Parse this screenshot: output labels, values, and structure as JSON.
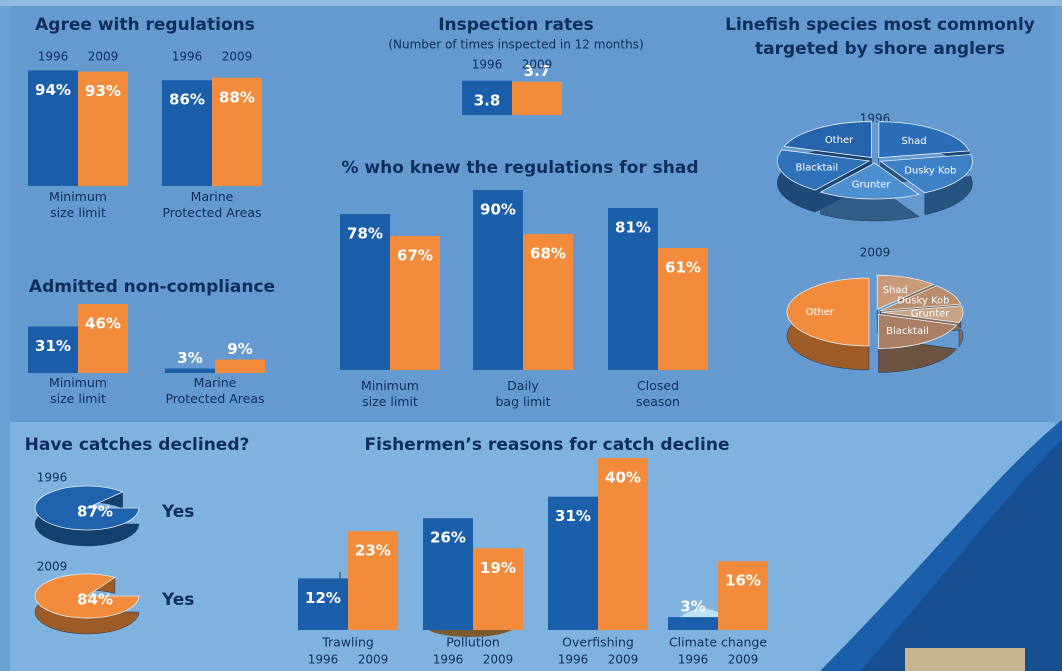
{
  "chart_data": [
    {
      "type": "bar",
      "title": "Agree with regulations",
      "categories": [
        "Minimum size limit",
        "Marine Protected Areas"
      ],
      "series": [
        {
          "name": "1996",
          "color": "#1b5ea9",
          "values": [
            94,
            86
          ],
          "value_labels": [
            "94%",
            "86%"
          ]
        },
        {
          "name": "2009",
          "color": "#f28c3c",
          "values": [
            93,
            88
          ],
          "value_labels": [
            "93%",
            "88%"
          ]
        }
      ]
    },
    {
      "type": "bar",
      "title": "Inspection rates",
      "subtitle": "(Number of times inspected in 12 months)",
      "series": [
        {
          "name": "1996",
          "color": "#1b5ea9",
          "values": [
            3.8
          ]
        },
        {
          "name": "2009",
          "color": "#f28c3c",
          "values": [
            3.7
          ]
        }
      ]
    },
    {
      "type": "pie",
      "title": "Linefish species most commonly targeted by shore anglers",
      "categories": [
        "Shad",
        "Dusky Kob",
        "Grunter",
        "Blacktail",
        "Other"
      ],
      "series": [
        {
          "name": "1996",
          "colors": [
            "#2a6db6",
            "#3c80c6",
            "#4d8fd0",
            "#2f72b9",
            "#2564ab"
          ],
          "values": [
            22,
            20,
            18,
            20,
            20
          ]
        },
        {
          "name": "2009",
          "colors": [
            "#c89a78",
            "#b98c6c",
            "#c9a386",
            "#a97e62",
            "#f28c3c"
          ],
          "values": [
            12,
            10,
            8,
            20,
            50
          ]
        }
      ]
    },
    {
      "type": "bar",
      "title": "Admitted non-compliance",
      "categories": [
        "Minimum size limit",
        "Marine Protected Areas"
      ],
      "series": [
        {
          "color": "#1b5ea9",
          "values": [
            31,
            3
          ],
          "value_labels": [
            "31%",
            "3%"
          ]
        },
        {
          "color": "#f28c3c",
          "values": [
            46,
            9
          ],
          "value_labels": [
            "46%",
            "9%"
          ]
        }
      ]
    },
    {
      "type": "bar",
      "title": "% who knew the regulations for shad",
      "categories": [
        "Minimum size limit",
        "Daily bag limit",
        "Closed season"
      ],
      "series": [
        {
          "color": "#1b5ea9",
          "values": [
            78,
            90,
            81
          ],
          "value_labels": [
            "78%",
            "90%",
            "81%"
          ]
        },
        {
          "color": "#f28c3c",
          "values": [
            67,
            68,
            61
          ],
          "value_labels": [
            "67%",
            "68%",
            "61%"
          ]
        }
      ]
    },
    {
      "type": "pie",
      "title": "Have catches declined?",
      "categories": [
        "Yes"
      ],
      "series": [
        {
          "name": "1996",
          "color": "#1f63ad",
          "values": [
            87
          ],
          "value_labels": [
            "87%"
          ]
        },
        {
          "name": "2009",
          "color": "#f28c3c",
          "values": [
            84
          ],
          "value_labels": [
            "84%"
          ]
        }
      ]
    },
    {
      "type": "bar",
      "title": "Fishermen’s reasons for catch decline",
      "categories": [
        "Trawling",
        "Pollution",
        "Overfishing",
        "Climate change"
      ],
      "series": [
        {
          "name": "1996",
          "color": "#1b5ea9",
          "values": [
            12,
            26,
            31,
            3
          ],
          "value_labels": [
            "12%",
            "26%",
            "31%",
            "3%"
          ]
        },
        {
          "name": "2009",
          "color": "#f28c3c",
          "values": [
            23,
            19,
            40,
            16
          ],
          "value_labels": [
            "23%",
            "19%",
            "40%",
            "16%"
          ]
        }
      ]
    }
  ]
}
